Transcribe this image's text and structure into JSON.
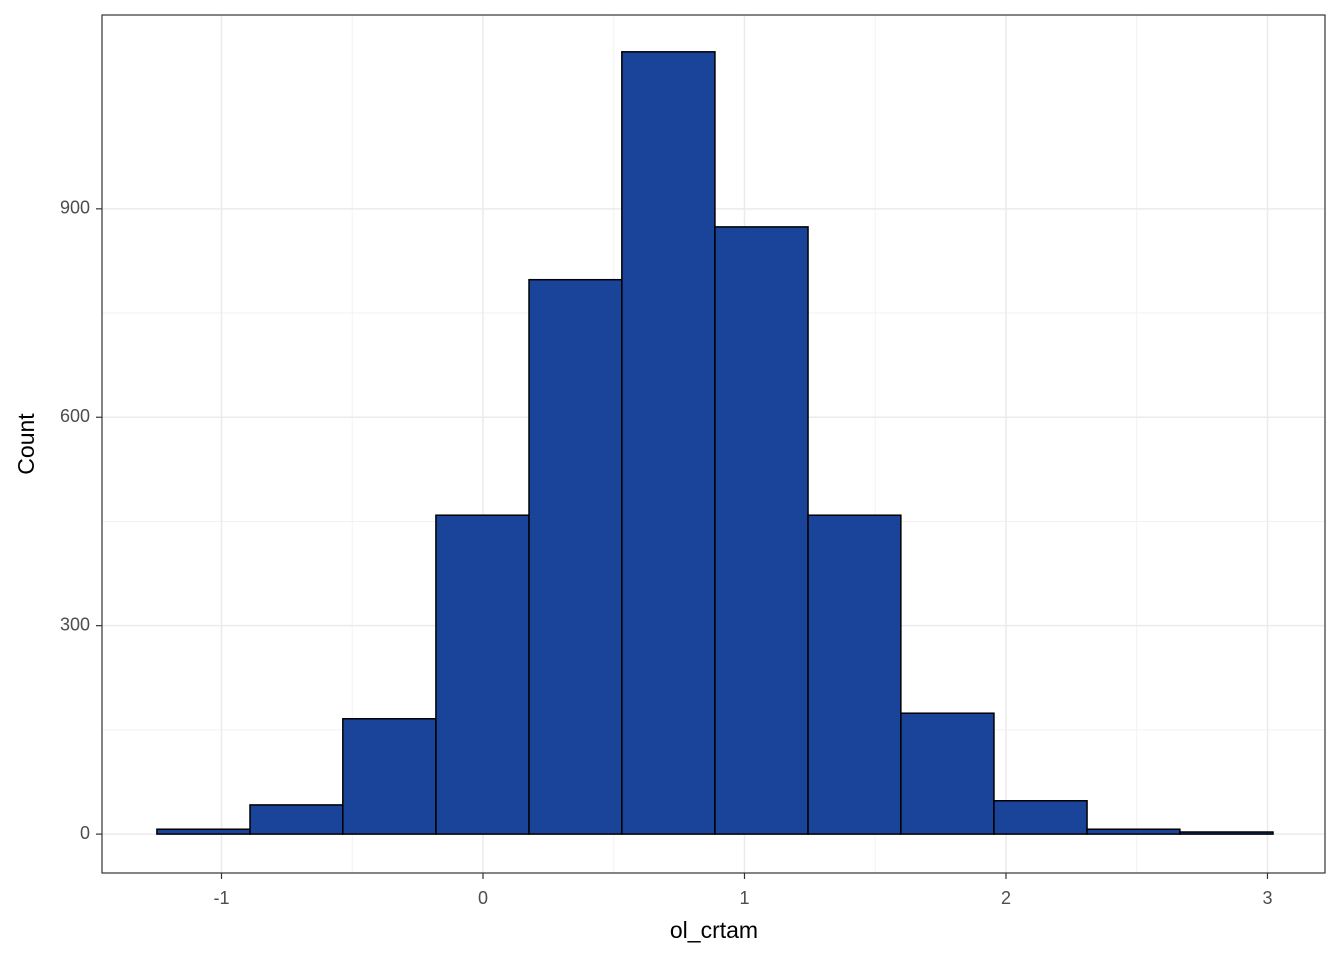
{
  "chart_data": {
    "type": "histogram",
    "x_label": "ol_crtam",
    "y_label": "Count",
    "bins": [
      -1.247,
      -0.891,
      -0.536,
      -0.18,
      0.176,
      0.531,
      0.887,
      1.243,
      1.598,
      1.954,
      2.31,
      2.665,
      3.021
    ],
    "values": [
      7,
      42,
      166,
      459,
      798,
      1126,
      874,
      459,
      174,
      48,
      7,
      3
    ],
    "color": "#19449a",
    "edge_color": "#000000",
    "xlim": [
      -1.457,
      3.22
    ],
    "xticks": [
      -1,
      0,
      1,
      2,
      3
    ],
    "ylim": [
      -56,
      1179
    ],
    "yticks": [
      0,
      300,
      600,
      900
    ],
    "grid": true,
    "minor_grid": true
  }
}
